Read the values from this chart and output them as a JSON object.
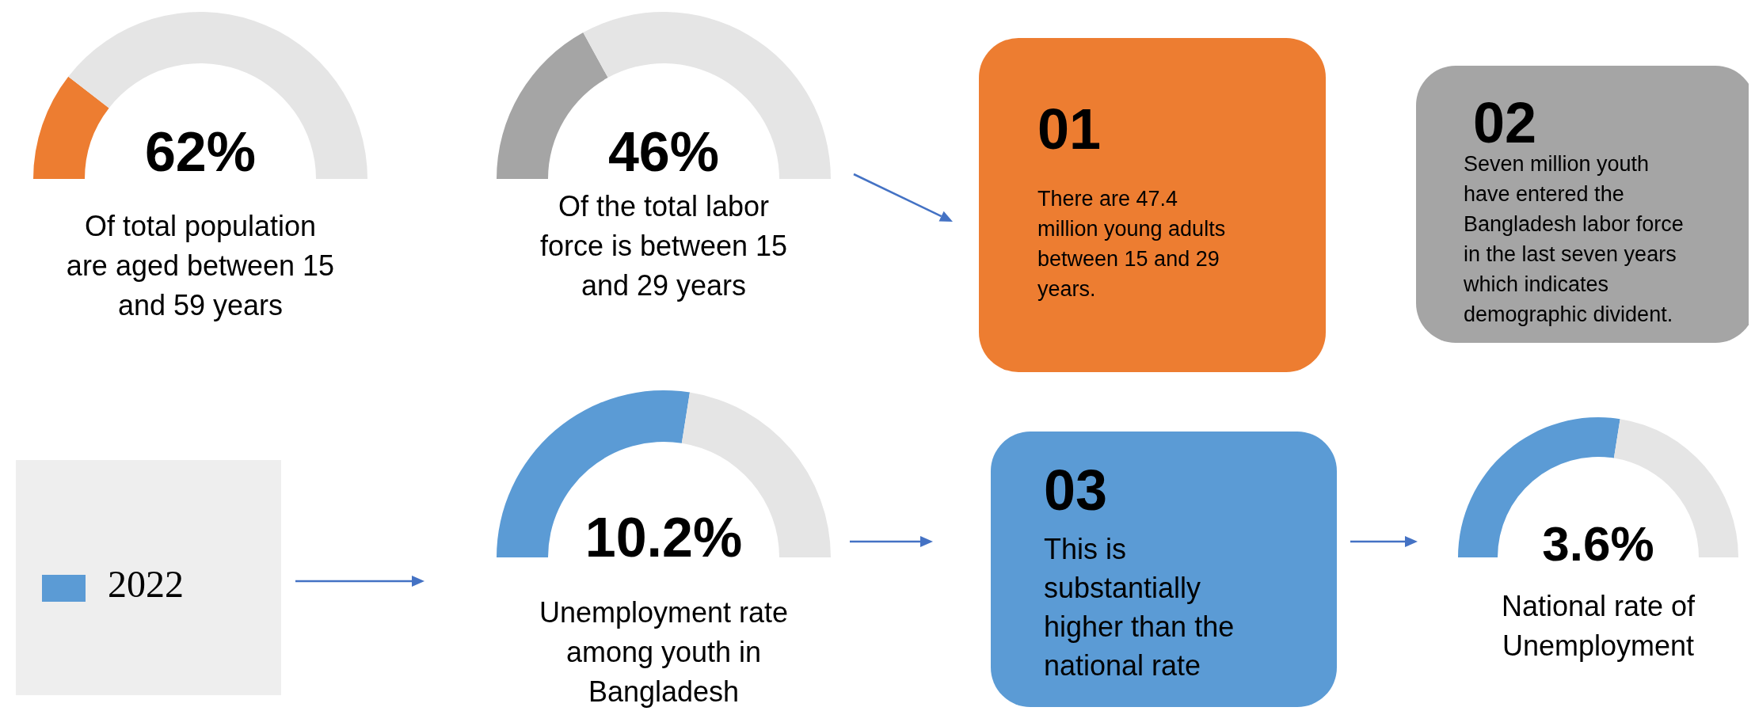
{
  "chart_data": [
    {
      "type": "donut",
      "title": "62%",
      "categories": [
        null,
        null
      ],
      "values": [
        21,
        79
      ],
      "colors": [
        "#ed7d31",
        "#e5e5e5"
      ],
      "annotations": [
        "Of total population are aged between 15 and 59 years"
      ]
    },
    {
      "type": "donut",
      "title": "46%",
      "categories": [
        null,
        null
      ],
      "values": [
        34,
        66
      ],
      "colors": [
        "#a5a5a5",
        "#e5e5e5"
      ],
      "annotations": [
        "Of the total labor force is between 15 and 29 years"
      ]
    },
    {
      "type": "other",
      "title": "01",
      "annotations": [
        "There are 47.4 million young adults between 15 and 29 years."
      ]
    },
    {
      "type": "other",
      "title": "02",
      "annotations": [
        "Seven million youth have entered the Bangladesh labor force in the last seven years which indicates demographic divident."
      ]
    },
    {
      "type": "donut",
      "title": "10.2%",
      "categories": [
        "2022",
        null
      ],
      "values": [
        55,
        45
      ],
      "colors": [
        "#5b9bd5",
        "#e5e5e5"
      ],
      "legend": "left",
      "annotations": [
        "Unemployment rate among youth in Bangladesh"
      ]
    },
    {
      "type": "other",
      "title": "03",
      "annotations": [
        "This is substantially higher than the national rate"
      ]
    },
    {
      "type": "donut",
      "title": "3.6%",
      "categories": [
        null,
        null
      ],
      "values": [
        55,
        45
      ],
      "colors": [
        "#5b9bd5",
        "#e5e5e5"
      ],
      "annotations": [
        "National rate of Unemployment"
      ]
    }
  ]
}
